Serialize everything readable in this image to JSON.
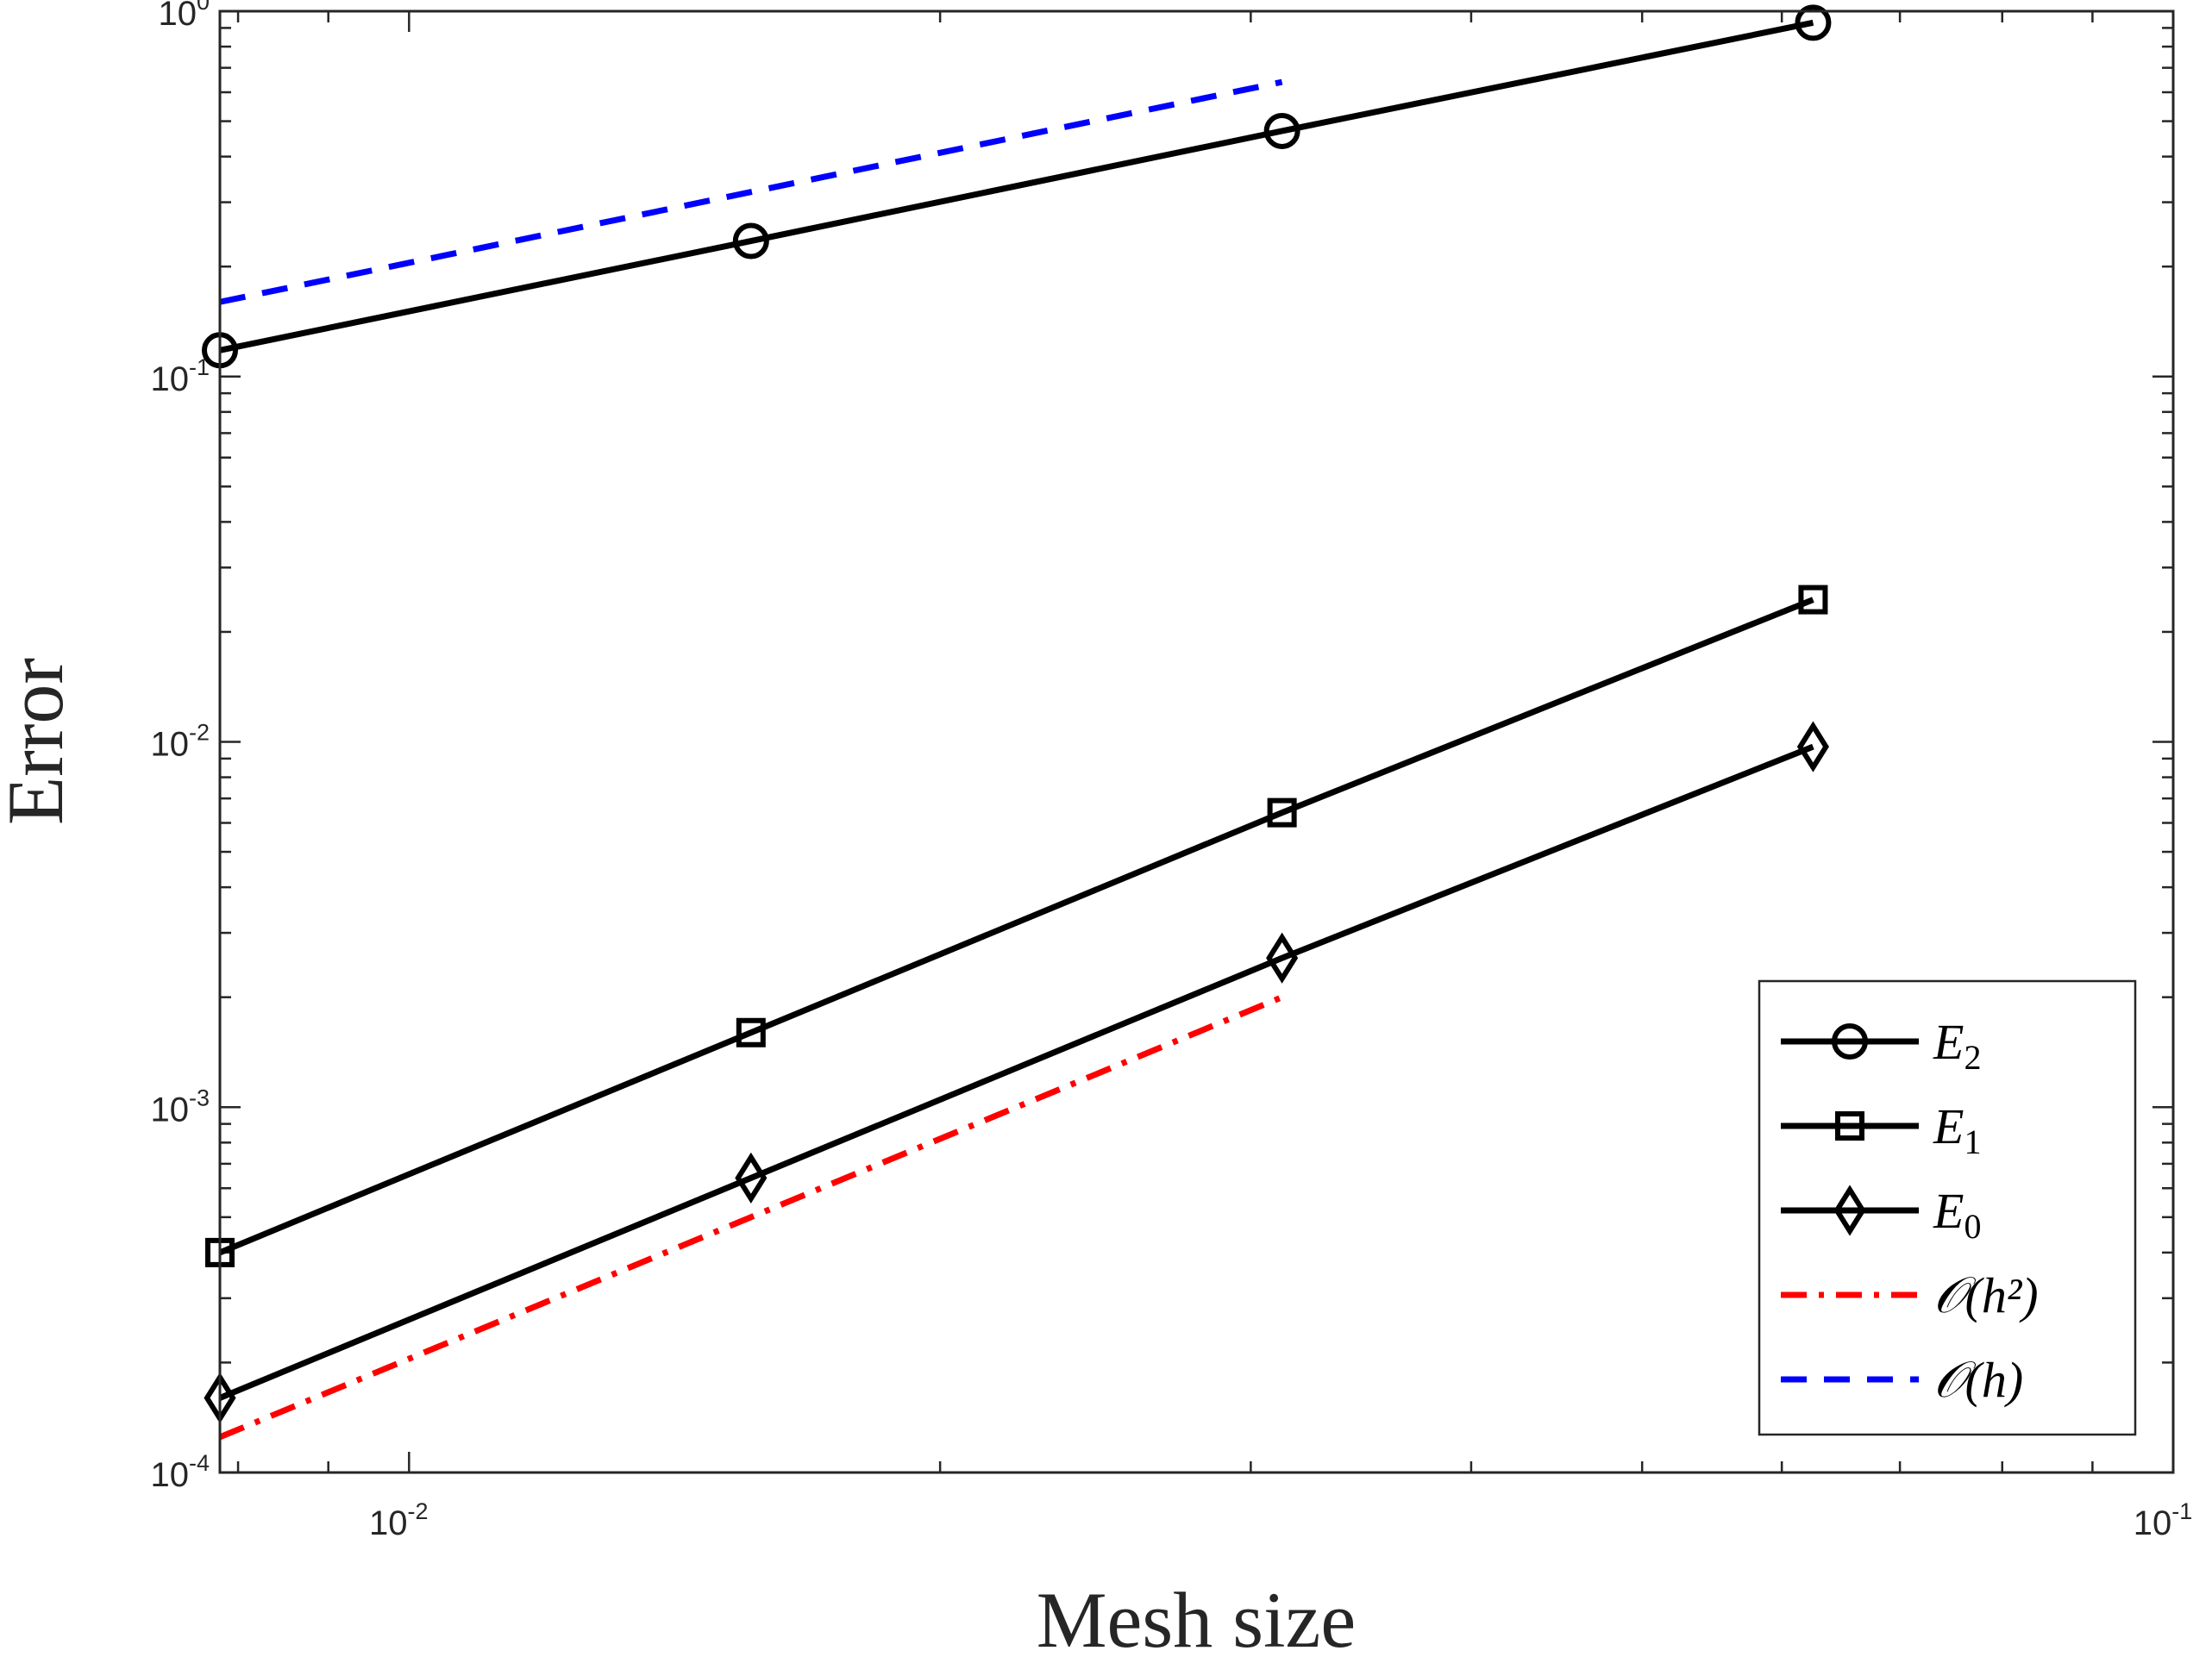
{
  "chart_data": {
    "type": "line",
    "title": "",
    "xlabel": "Mesh size",
    "ylabel": "Error",
    "xscale": "log",
    "yscale": "log",
    "xlim": [
      0.0078125,
      0.1
    ],
    "ylim": [
      0.0001,
      1
    ],
    "grid": false,
    "legend_position": "bottom-right",
    "x_ticks": [
      {
        "base": "10",
        "exp": "-2",
        "value": 0.01
      },
      {
        "base": "10",
        "exp": "-1",
        "value": 0.1
      }
    ],
    "y_ticks": [
      {
        "base": "10",
        "exp": "-4",
        "value": 0.0001
      },
      {
        "base": "10",
        "exp": "-3",
        "value": 0.001
      },
      {
        "base": "10",
        "exp": "-2",
        "value": 0.01
      },
      {
        "base": "10",
        "exp": "-1",
        "value": 0.1
      },
      {
        "base": "10",
        "exp": "0",
        "value": 1
      }
    ],
    "series": [
      {
        "name": "E",
        "sub": "2",
        "id": "E2",
        "marker": "circle",
        "color": "#000000",
        "dash": "solid",
        "x": [
          0.0078125,
          0.015625,
          0.03125,
          0.0625
        ],
        "y": [
          0.118,
          0.235,
          0.47,
          0.93
        ]
      },
      {
        "name": "E",
        "sub": "1",
        "id": "E1",
        "marker": "square",
        "color": "#000000",
        "dash": "solid",
        "x": [
          0.0078125,
          0.015625,
          0.03125,
          0.0625
        ],
        "y": [
          0.0004,
          0.0016,
          0.0064,
          0.0245
        ]
      },
      {
        "name": "E",
        "sub": "0",
        "id": "E0",
        "marker": "diamond",
        "color": "#000000",
        "dash": "solid",
        "x": [
          0.0078125,
          0.015625,
          0.03125,
          0.0625
        ],
        "y": [
          0.00016,
          0.00064,
          0.00256,
          0.0097
        ]
      },
      {
        "name": "𝒪(h²)",
        "id": "Oh2",
        "marker": "none",
        "color": "#ff0000",
        "dash": "dashdot",
        "x": [
          0.0078125,
          0.03125
        ],
        "y": [
          0.000125,
          0.002
        ]
      },
      {
        "name": "𝒪(h)",
        "id": "Oh",
        "marker": "none",
        "color": "#0000ff",
        "dash": "dashed",
        "x": [
          0.0078125,
          0.03125
        ],
        "y": [
          0.16,
          0.64
        ]
      }
    ]
  }
}
